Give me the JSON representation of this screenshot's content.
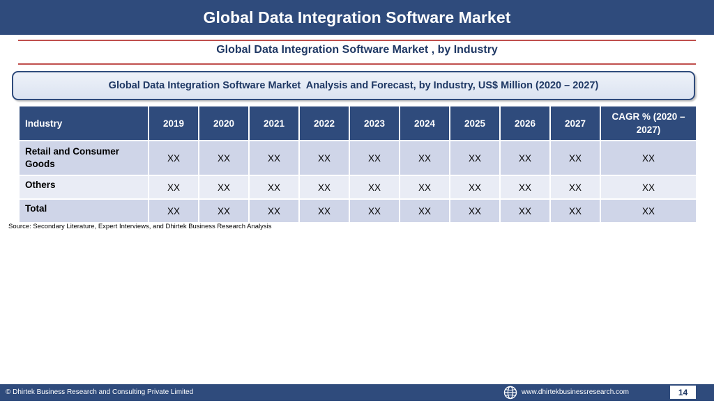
{
  "header": {
    "title": "Global Data Integration Software Market"
  },
  "subtitle": "Global Data Integration Software Market , by Industry",
  "banner": "Global Data Integration Software Market  Analysis and Forecast, by Industry, US$ Million (2020 – 2027)",
  "table": {
    "headers": [
      "Industry",
      "2019",
      "2020",
      "2021",
      "2022",
      "2023",
      "2024",
      "2025",
      "2026",
      "2027",
      "CAGR % (2020 – 2027)"
    ],
    "rows": [
      [
        "Retail and Consumer Goods",
        "XX",
        "XX",
        "XX",
        "XX",
        "XX",
        "XX",
        "XX",
        "XX",
        "XX",
        "XX"
      ],
      [
        "Others",
        "XX",
        "XX",
        "XX",
        "XX",
        "XX",
        "XX",
        "XX",
        "XX",
        "XX",
        "XX"
      ],
      [
        "Total",
        "XX",
        "XX",
        "XX",
        "XX",
        "XX",
        "XX",
        "XX",
        "XX",
        "XX",
        "XX"
      ]
    ]
  },
  "source": "Source: Secondary Literature, Expert Interviews, and Dhirtek Business Research Analysis",
  "footer": {
    "copyright": "© Dhirtek Business Research and Consulting Private Limited",
    "url": "www.dhirtekbusinessresearch.com",
    "page_number": "14",
    "globe_icon": "globe-icon"
  },
  "colors": {
    "header_bg": "#2f4b7c",
    "rule": "#c0504d",
    "row_dark": "#cfd5e8",
    "row_light": "#e9ecf5",
    "heading_text": "#1f3864"
  }
}
